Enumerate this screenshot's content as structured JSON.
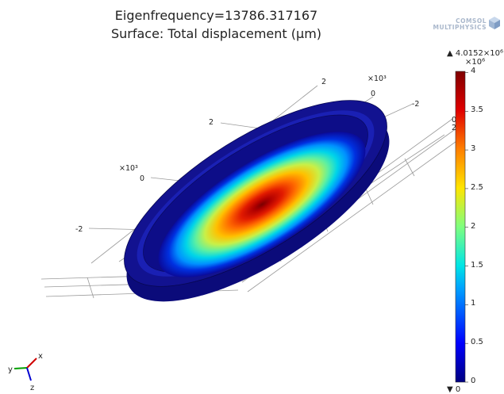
{
  "header": {
    "title": "Eigenfrequency=13786.317167",
    "subtitle": "Surface: Total displacement (µm)"
  },
  "logo": {
    "line1": "COMSOL",
    "line2": "MULTIPHYSICS"
  },
  "colorbar": {
    "max_label": "▲ 4.0152×10⁶",
    "exp_label": "×10⁶",
    "min_label": "▼ 0",
    "ticks": [
      "4",
      "3.5",
      "3",
      "2.5",
      "2",
      "1.5",
      "1",
      "0.5",
      "0"
    ],
    "tick_values": [
      4,
      3.5,
      3,
      2.5,
      2,
      1.5,
      1,
      0.5,
      0
    ],
    "range": [
      0,
      4.0152
    ],
    "colormap": "rainbow",
    "colors": [
      "#00007f",
      "#0000ff",
      "#00a0ff",
      "#00e5e5",
      "#7fff7f",
      "#ffe500",
      "#ff7f00",
      "#e00000",
      "#7f0000"
    ]
  },
  "axes": {
    "labels_top": [
      "2",
      "×10³",
      "0",
      "-2"
    ],
    "labels_left": [
      "2",
      "×10³",
      "0",
      "-2"
    ],
    "labels_right": [
      "0",
      "2"
    ]
  },
  "triad": {
    "x": "x",
    "y": "y",
    "z": "z"
  },
  "chart_data": {
    "type": "surface",
    "title": "Eigenfrequency=13786.317167",
    "subtitle": "Surface: Total displacement (µm)",
    "quantity": "Total displacement",
    "unit": "µm",
    "eigenfrequency": 13786.317167,
    "color_range": [
      0,
      4015200.0
    ],
    "peak_location": "center of circular plate",
    "colorbar_ticks": [
      0,
      0.5,
      1,
      1.5,
      2,
      2.5,
      3,
      3.5,
      4
    ],
    "colorbar_scale": "×10⁶"
  }
}
